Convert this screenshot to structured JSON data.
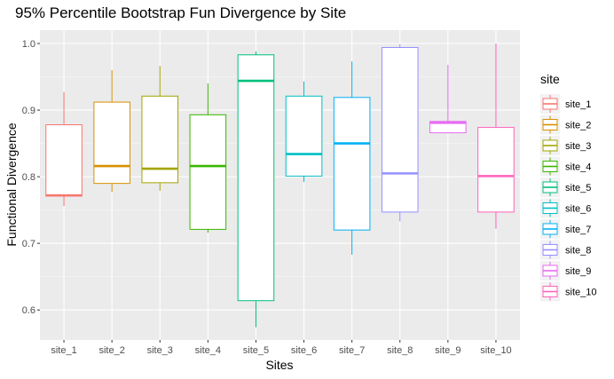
{
  "chart_data": {
    "type": "boxplot",
    "title": "95% Percentile Bootstrap Fun Divergence by Site",
    "xlabel": "Sites",
    "ylabel": "Functional Divergence",
    "ylim": [
      0.555,
      1.02
    ],
    "yticks": [
      0.6,
      0.7,
      0.8,
      0.9,
      1.0
    ],
    "ytick_labels": [
      "0.6",
      "0.7",
      "0.8",
      "0.9",
      "1.0"
    ],
    "grid": true,
    "legend": {
      "title": "site",
      "position": "right"
    },
    "categories": [
      "site_1",
      "site_2",
      "site_3",
      "site_4",
      "site_5",
      "site_6",
      "site_7",
      "site_8",
      "site_9",
      "site_10"
    ],
    "series": [
      {
        "name": "site_1",
        "color": "#F8766D",
        "min": 0.756,
        "q1": 0.771,
        "median": 0.772,
        "q3": 0.878,
        "max": 0.927
      },
      {
        "name": "site_2",
        "color": "#D89000",
        "min": 0.777,
        "q1": 0.79,
        "median": 0.816,
        "q3": 0.912,
        "max": 0.96
      },
      {
        "name": "site_3",
        "color": "#A3A500",
        "min": 0.779,
        "q1": 0.791,
        "median": 0.812,
        "q3": 0.921,
        "max": 0.966
      },
      {
        "name": "site_4",
        "color": "#39B600",
        "min": 0.716,
        "q1": 0.721,
        "median": 0.816,
        "q3": 0.893,
        "max": 0.94
      },
      {
        "name": "site_5",
        "color": "#00BF7D",
        "min": 0.574,
        "q1": 0.614,
        "median": 0.944,
        "q3": 0.983,
        "max": 0.988
      },
      {
        "name": "site_6",
        "color": "#00BFC4",
        "min": 0.792,
        "q1": 0.801,
        "median": 0.834,
        "q3": 0.921,
        "max": 0.943
      },
      {
        "name": "site_7",
        "color": "#00B0F6",
        "min": 0.683,
        "q1": 0.72,
        "median": 0.85,
        "q3": 0.919,
        "max": 0.973
      },
      {
        "name": "site_8",
        "color": "#9590FF",
        "min": 0.733,
        "q1": 0.747,
        "median": 0.805,
        "q3": 0.994,
        "max": 0.999
      },
      {
        "name": "site_9",
        "color": "#E76BF3",
        "min": 0.865,
        "q1": 0.866,
        "median": 0.881,
        "q3": 0.883,
        "max": 0.968
      },
      {
        "name": "site_10",
        "color": "#FF62BC",
        "min": 0.722,
        "q1": 0.747,
        "median": 0.801,
        "q3": 0.874,
        "max": 1.0
      }
    ]
  }
}
